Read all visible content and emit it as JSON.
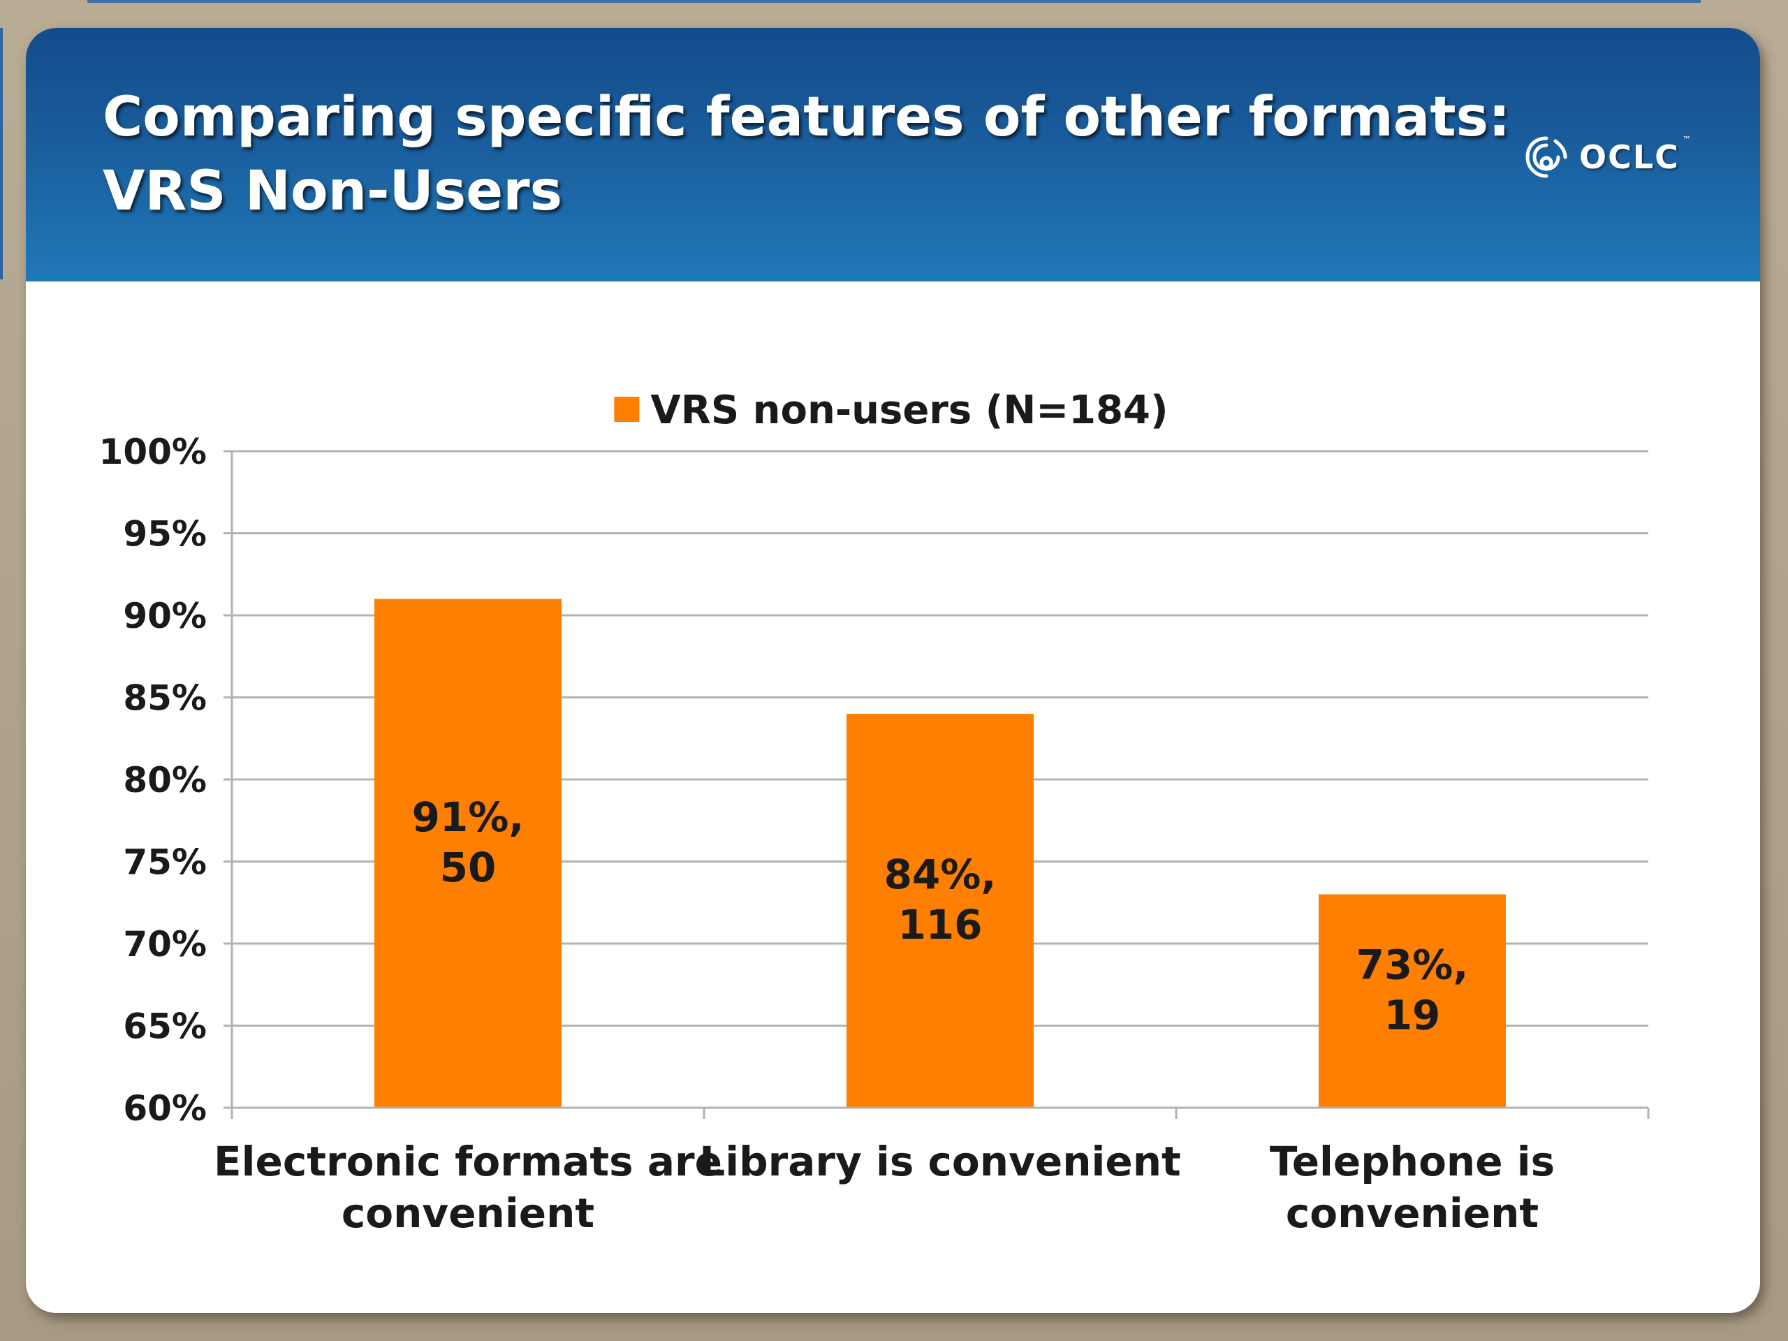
{
  "slide": {
    "title_line1": "Comparing specific features of other formats:",
    "title_line2": "VRS Non-Users",
    "logo_text": "OCLC",
    "logo_tm": "™"
  },
  "colors": {
    "bar": "#ff7f00",
    "grid": "#b3b3b3",
    "text": "#1a1a1a",
    "header": "#1a5d9c"
  },
  "chart_data": {
    "type": "bar",
    "categories": [
      [
        "Electronic formats are",
        "convenient"
      ],
      [
        "Library is convenient"
      ],
      [
        "Telephone is",
        "convenient"
      ]
    ],
    "series": [
      {
        "name": "VRS non-users (N=184)",
        "values": [
          91,
          84,
          73
        ],
        "data_labels": [
          [
            "91%,",
            "50"
          ],
          [
            "84%,",
            "116"
          ],
          [
            "73%,",
            "19"
          ]
        ]
      }
    ],
    "ylim": [
      60,
      100
    ],
    "yticks": [
      60,
      65,
      70,
      75,
      80,
      85,
      90,
      95,
      100
    ],
    "ytick_labels": [
      "60%",
      "65%",
      "70%",
      "75%",
      "80%",
      "85%",
      "90%",
      "95%",
      "100%"
    ],
    "grid": true,
    "legend_position": "top-center"
  }
}
